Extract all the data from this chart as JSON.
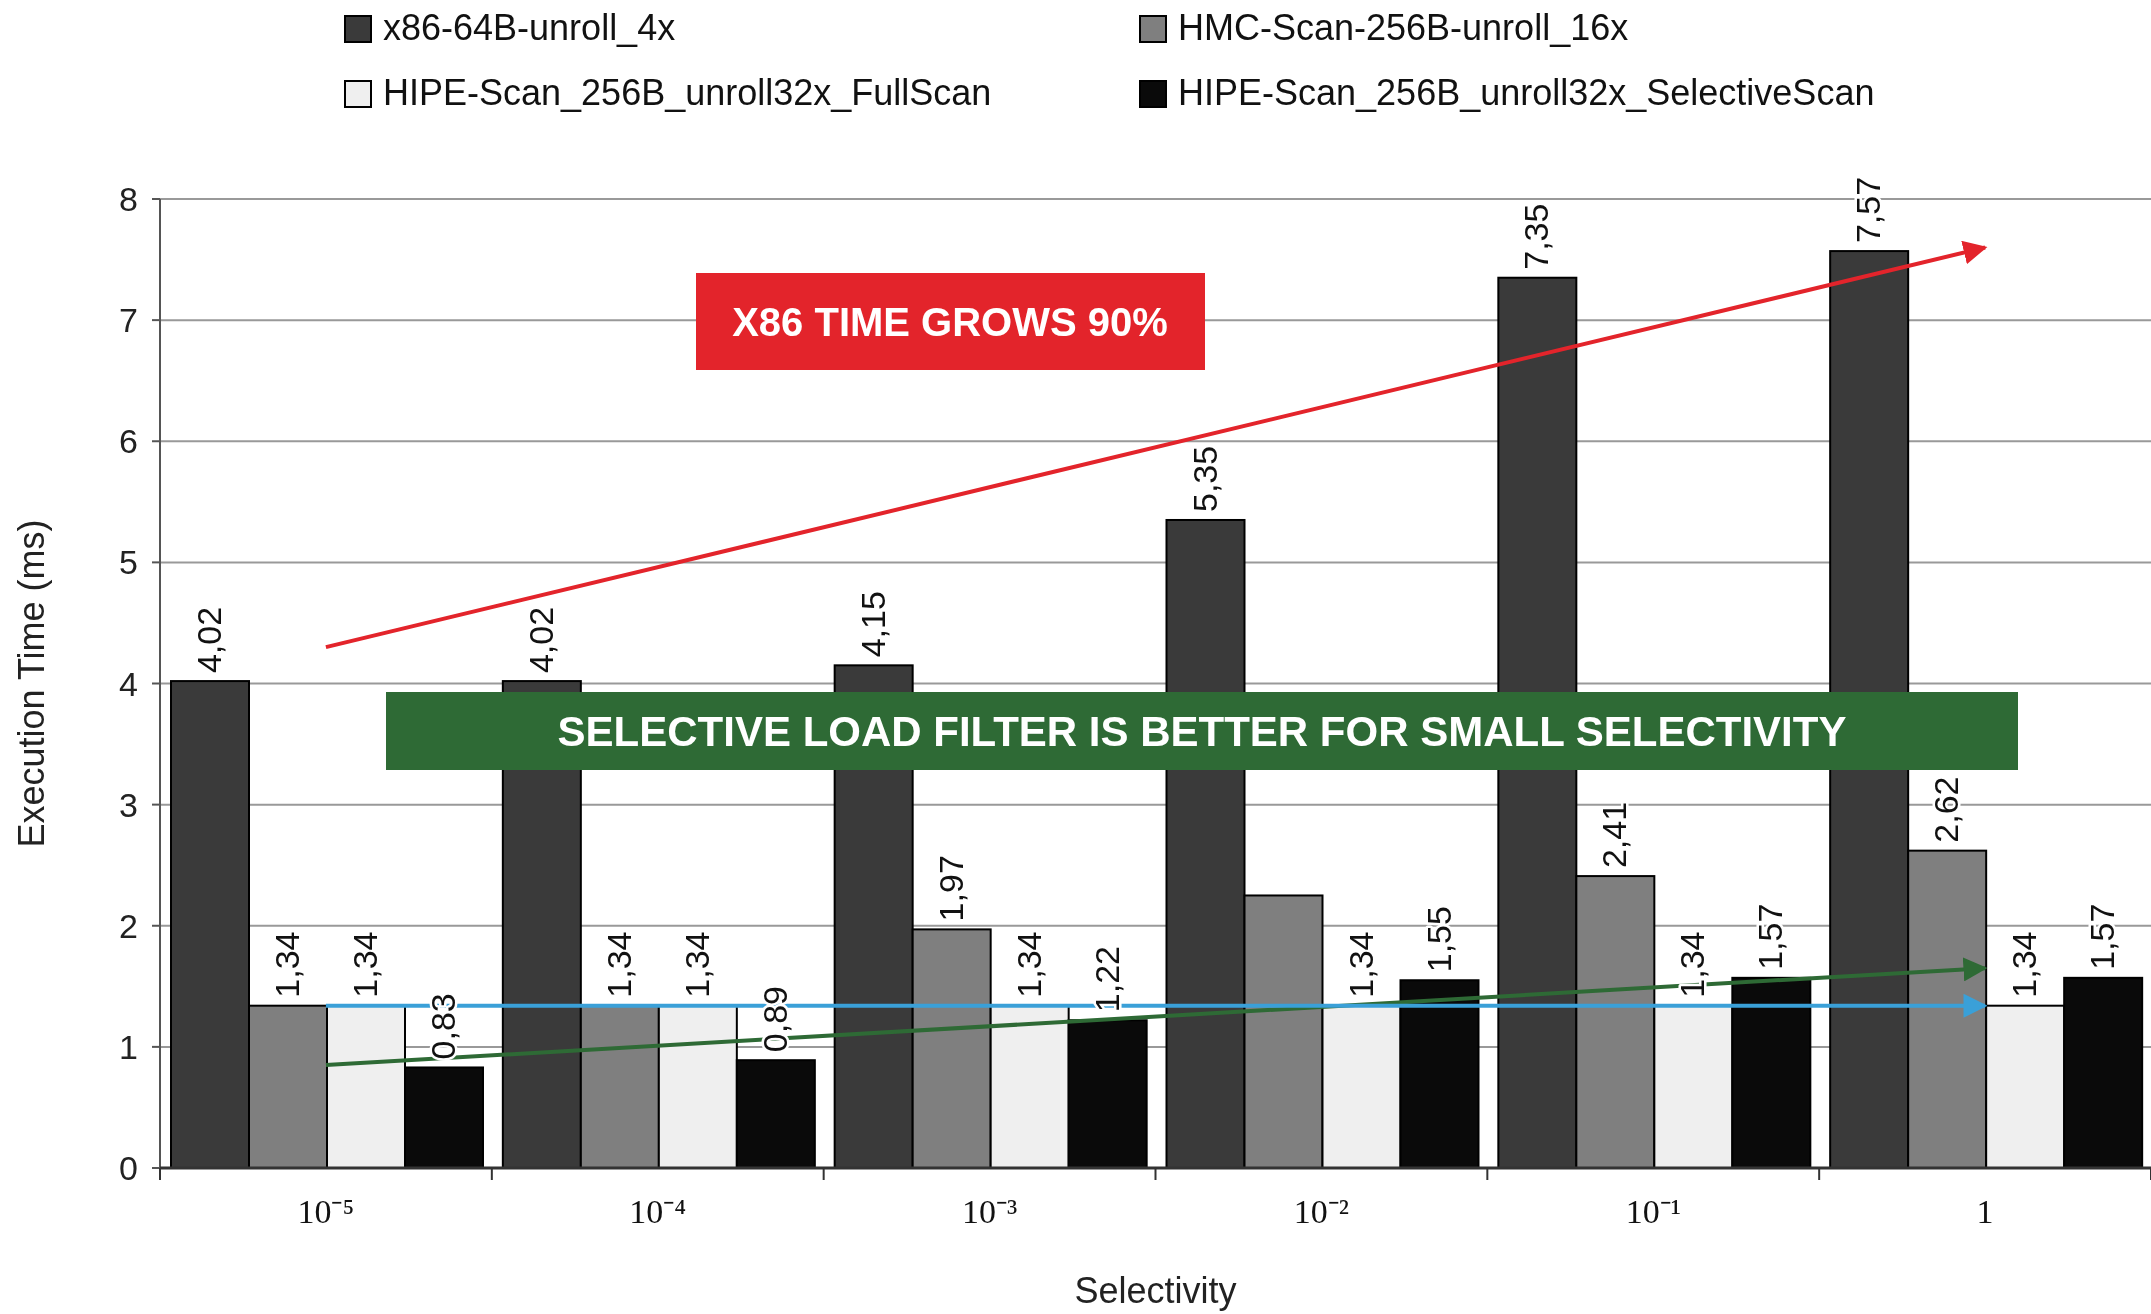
{
  "chart_data": {
    "type": "bar",
    "xlabel": "Selectivity",
    "ylabel": "Execution Time (ms)",
    "categories": [
      "10⁻⁵",
      "10⁻⁴",
      "10⁻³",
      "10⁻²",
      "10⁻¹",
      "1"
    ],
    "ylim": [
      0,
      8
    ],
    "yticks": [
      0,
      1,
      2,
      3,
      4,
      5,
      6,
      7,
      8
    ],
    "grid": "y",
    "legend": "top",
    "annotations": [
      "X86 TIME GROWS 90%",
      "SELECTIVE LOAD FILTER IS BETTER FOR SMALL SELECTIVITY"
    ],
    "series": [
      {
        "name": "x86-64B-unroll_4x",
        "color": "#3a3a3a",
        "values": [
          4.02,
          4.02,
          4.15,
          5.35,
          7.35,
          7.57
        ],
        "value_labels": [
          "4,02",
          "4,02",
          "4,15",
          "5,35",
          "7,35",
          "7,57"
        ]
      },
      {
        "name": "HMC-Scan-256B-unroll_16x",
        "color": "#7f7f7f",
        "values": [
          1.34,
          1.34,
          1.97,
          2.25,
          2.41,
          2.62
        ],
        "value_labels": [
          "1,34",
          "1,34",
          "1,97",
          null,
          "2,41",
          "2,62"
        ]
      },
      {
        "name": "HIPE-Scan_256B_unroll32x_FullScan",
        "color": "#efefef",
        "values": [
          1.34,
          1.34,
          1.34,
          1.34,
          1.34,
          1.34
        ],
        "value_labels": [
          "1,34",
          "1,34",
          "1,34",
          "1,34",
          "1,34",
          "1,34"
        ]
      },
      {
        "name": "HIPE-Scan_256B_unroll32x_SelectiveScan",
        "color": "#0a0a0a",
        "values": [
          0.83,
          0.89,
          1.22,
          1.55,
          1.57,
          1.57
        ],
        "value_labels": [
          "0,83",
          "0,89",
          "1,22",
          "1,55",
          "1,57",
          "1,57"
        ]
      },
      {
        "type": "line",
        "color": "#e3242b",
        "x": [
          "10⁻⁵",
          "1"
        ],
        "values": [
          4.3,
          7.6
        ]
      },
      {
        "type": "line",
        "color": "#2e6a35",
        "x": [
          "10⁻⁵",
          "1"
        ],
        "values": [
          0.85,
          1.65
        ]
      },
      {
        "type": "line",
        "color": "#3aa0d8",
        "x": [
          "10⁻⁵",
          "1"
        ],
        "values": [
          1.34,
          1.34
        ]
      }
    ]
  }
}
